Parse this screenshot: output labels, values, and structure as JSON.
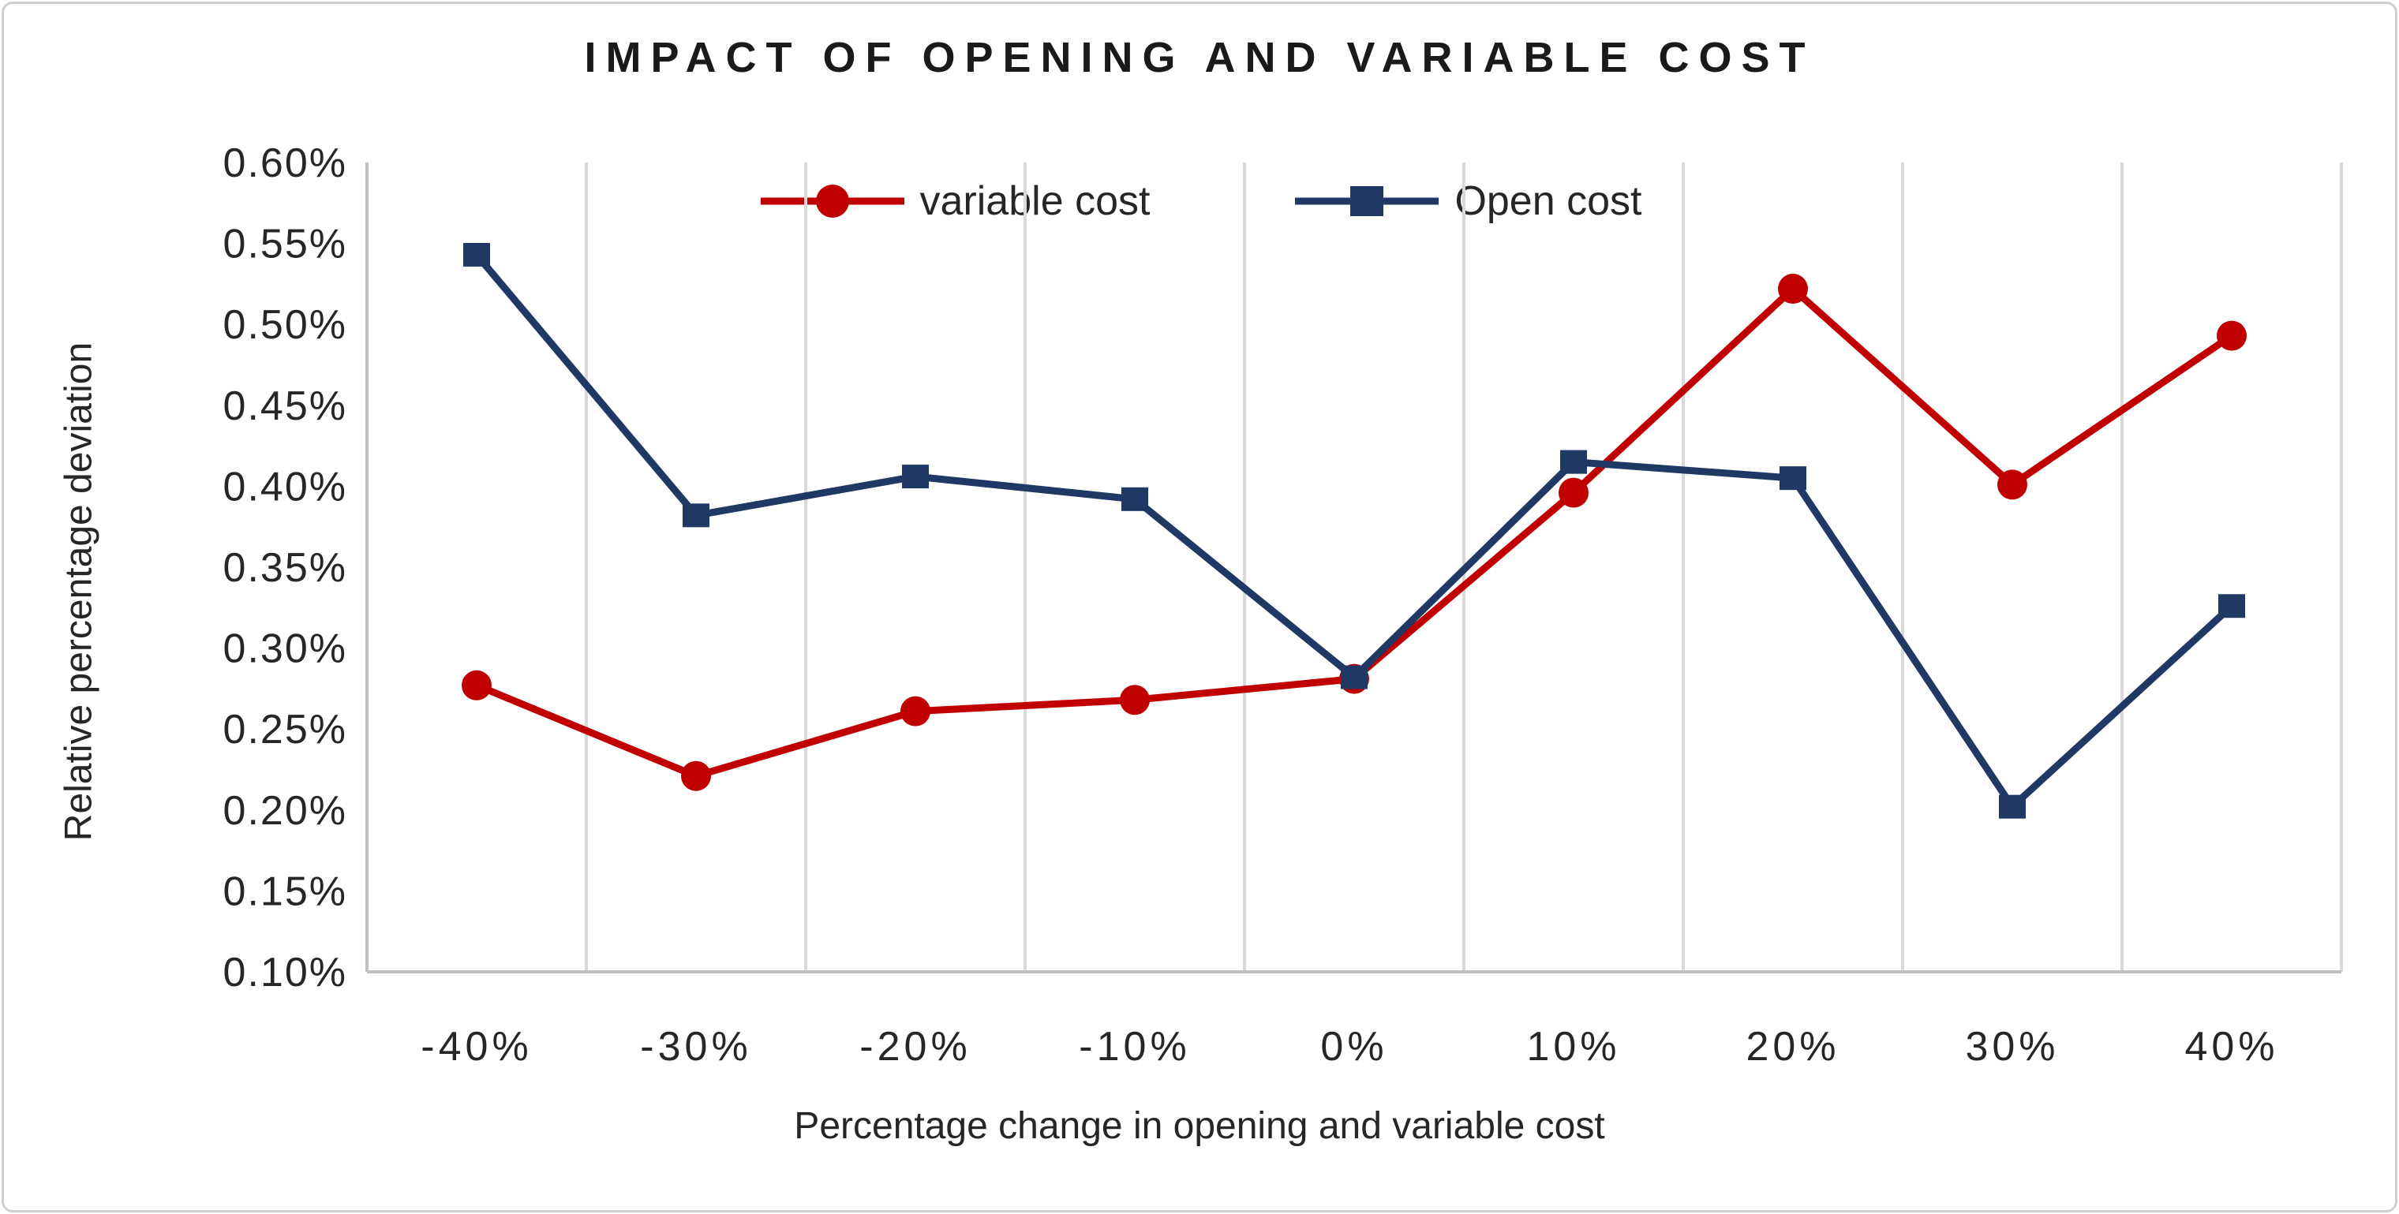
{
  "chart_data": {
    "type": "line",
    "title": "IMPACT OF OPENING AND VARIABLE COST",
    "xlabel": "Percentage change in opening and variable cost",
    "ylabel": "Relative percentage deviation",
    "categories": [
      "-40%",
      "-30%",
      "-20%",
      "-10%",
      "0%",
      "10%",
      "20%",
      "30%",
      "40%"
    ],
    "y_ticks": [
      "0.60%",
      "0.55%",
      "0.50%",
      "0.45%",
      "0.40%",
      "0.35%",
      "0.30%",
      "0.25%",
      "0.20%",
      "0.15%",
      "0.10%"
    ],
    "ylim": [
      0.1,
      0.6
    ],
    "y_tick_step": 0.05,
    "grid": "vertical-only",
    "legend_position": "top-center",
    "series": [
      {
        "name": "variable cost",
        "color": "#C00000",
        "marker": "circle",
        "values": [
          0.277,
          0.221,
          0.261,
          0.268,
          0.281,
          0.396,
          0.522,
          0.401,
          0.493
        ]
      },
      {
        "name": "Open cost",
        "color": "#1F3864",
        "marker": "square",
        "values": [
          0.543,
          0.382,
          0.406,
          0.392,
          0.282,
          0.415,
          0.405,
          0.202,
          0.326
        ]
      }
    ]
  },
  "colors": {
    "gridline": "#D9D9D9",
    "axis_line": "#BFBFBF",
    "tick_text": "#262626",
    "title_text": "#1a1a1a",
    "frame_border": "#CFCFCF",
    "background": "#FFFFFF"
  }
}
